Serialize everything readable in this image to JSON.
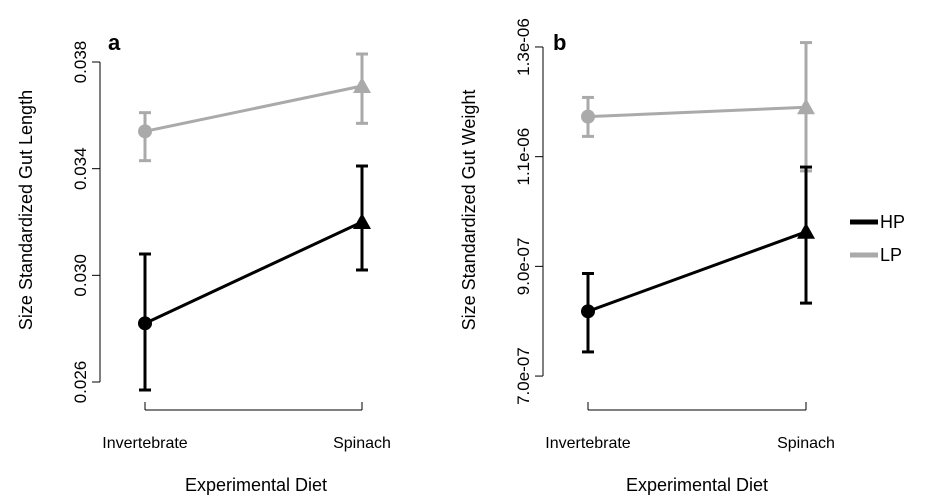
{
  "chart_data": [
    {
      "type": "line",
      "panel_label": "a",
      "categories": [
        "Invertebrate",
        "Spinach"
      ],
      "xlabel": "Experimental Diet",
      "ylabel": "Size Standardized Gut Length",
      "ylim": [
        0.0254,
        0.0389
      ],
      "yticks": [
        0.026,
        0.03,
        0.034,
        0.038
      ],
      "ytick_labels": [
        "0.026",
        "0.030",
        "0.034",
        "0.038"
      ],
      "series": [
        {
          "name": "LP",
          "color": "#aaaaaa",
          "markers": [
            "circle",
            "triangle"
          ],
          "values": [
            0.0354,
            0.0371
          ],
          "lower": [
            0.0343,
            0.0357
          ],
          "upper": [
            0.0361,
            0.0383
          ]
        },
        {
          "name": "HP",
          "color": "#000000",
          "markers": [
            "circle",
            "triangle"
          ],
          "values": [
            0.0282,
            0.032
          ],
          "lower": [
            0.0257,
            0.0302
          ],
          "upper": [
            0.0308,
            0.0341
          ]
        }
      ]
    },
    {
      "type": "line",
      "panel_label": "b",
      "categories": [
        "Invertebrate",
        "Spinach"
      ],
      "xlabel": "Experimental Diet",
      "ylabel": "Size Standardized Gut Weight",
      "ylim": [
        6.6e-07,
        1.32e-06
      ],
      "yticks": [
        7e-07,
        9e-07,
        1.1e-06,
        1.3e-06
      ],
      "ytick_labels": [
        "7.0e-07",
        "9.0e-07",
        "1.1e-06",
        "1.3e-06"
      ],
      "series": [
        {
          "name": "LP",
          "color": "#aaaaaa",
          "markers": [
            "circle",
            "triangle"
          ],
          "values": [
            1.173e-06,
            1.19e-06
          ],
          "lower": [
            1.137e-06,
            1.074e-06
          ],
          "upper": [
            1.208e-06,
            1.308e-06
          ]
        },
        {
          "name": "HP",
          "color": "#000000",
          "markers": [
            "circle",
            "triangle"
          ],
          "values": [
            8.18e-07,
            9.63e-07
          ],
          "lower": [
            7.44e-07,
            8.33e-07
          ],
          "upper": [
            8.87e-07,
            1.081e-06
          ]
        }
      ]
    }
  ],
  "legend": {
    "placement": "right",
    "items": [
      {
        "label": "HP",
        "color": "#000000"
      },
      {
        "label": "LP",
        "color": "#aaaaaa"
      }
    ]
  }
}
